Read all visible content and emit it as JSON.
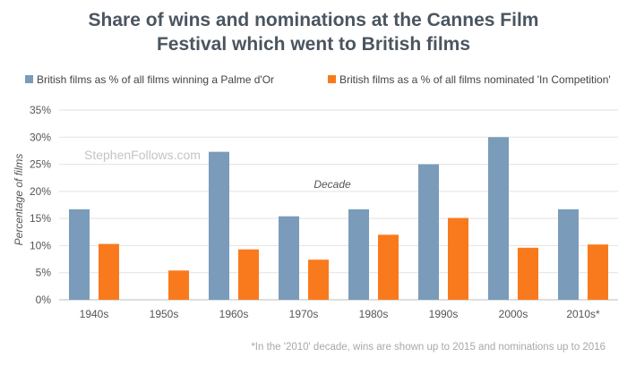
{
  "chart_data": {
    "type": "bar",
    "title": "Share of wins and nominations at the Cannes Film Festival which went to British films",
    "title_lines": [
      "Share of wins and nominations at the Cannes Film",
      "Festival which went to British films"
    ],
    "xlabel": "Decade",
    "ylabel": "Percentage of films",
    "categories": [
      "1940s",
      "1950s",
      "1960s",
      "1970s",
      "1980s",
      "1990s",
      "2000s",
      "2010s*"
    ],
    "series": [
      {
        "name": "British films as % of all films winning a Palme d'Or",
        "color": "#7a9cba",
        "values": [
          16.7,
          0,
          27.3,
          15.4,
          16.7,
          25.0,
          30.0,
          16.7
        ]
      },
      {
        "name": "British films as a % of all films nominated 'In Competition'",
        "color": "#f97a1d",
        "values": [
          10.3,
          5.4,
          9.3,
          7.4,
          12.0,
          15.1,
          9.6,
          10.2
        ]
      }
    ],
    "ylim": [
      0,
      35
    ],
    "y_ticks": [
      "0%",
      "5%",
      "10%",
      "15%",
      "20%",
      "25%",
      "30%",
      "35%"
    ],
    "y_tick_values": [
      0,
      5,
      10,
      15,
      20,
      25,
      30,
      35
    ],
    "grid": true,
    "legend_position": "top",
    "watermark": "StephenFollows.com",
    "footnote": "*In the '2010' decade, wins are shown up to 2015 and nominations up to 2016"
  }
}
